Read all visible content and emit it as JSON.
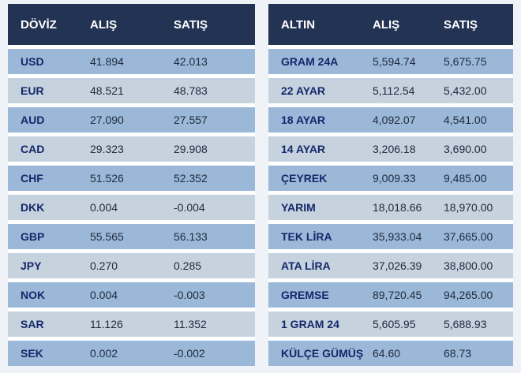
{
  "doviz": {
    "headers": {
      "name": "DÖVİZ",
      "buy": "ALIŞ",
      "sell": "SATIŞ"
    },
    "rows": [
      {
        "code": "USD",
        "buy": "41.894",
        "sell": "42.013"
      },
      {
        "code": "EUR",
        "buy": "48.521",
        "sell": "48.783"
      },
      {
        "code": "AUD",
        "buy": "27.090",
        "sell": "27.557"
      },
      {
        "code": "CAD",
        "buy": "29.323",
        "sell": "29.908"
      },
      {
        "code": "CHF",
        "buy": "51.526",
        "sell": "52.352"
      },
      {
        "code": "DKK",
        "buy": "0.004",
        "sell": "-0.004"
      },
      {
        "code": "GBP",
        "buy": "55.565",
        "sell": "56.133"
      },
      {
        "code": "JPY",
        "buy": "0.270",
        "sell": "0.285"
      },
      {
        "code": "NOK",
        "buy": "0.004",
        "sell": "-0.003"
      },
      {
        "code": "SAR",
        "buy": "11.126",
        "sell": "11.352"
      },
      {
        "code": "SEK",
        "buy": "0.002",
        "sell": "-0.002"
      }
    ]
  },
  "altin": {
    "headers": {
      "name": "ALTIN",
      "buy": "ALIŞ",
      "sell": "SATIŞ"
    },
    "rows": [
      {
        "code": "GRAM 24A",
        "buy": "5,594.74",
        "sell": "5,675.75"
      },
      {
        "code": "22 AYAR",
        "buy": "5,112.54",
        "sell": "5,432.00"
      },
      {
        "code": "18 AYAR",
        "buy": "4,092.07",
        "sell": "4,541.00"
      },
      {
        "code": "14 AYAR",
        "buy": "3,206.18",
        "sell": "3,690.00"
      },
      {
        "code": "ÇEYREK",
        "buy": "9,009.33",
        "sell": "9,485.00"
      },
      {
        "code": "YARIM",
        "buy": "18,018.66",
        "sell": "18,970.00"
      },
      {
        "code": "TEK LİRA",
        "buy": "35,933.04",
        "sell": "37,665.00"
      },
      {
        "code": "ATA LİRA",
        "buy": "37,026.39",
        "sell": "38,800.00"
      },
      {
        "code": "GREMSE",
        "buy": "89,720.45",
        "sell": "94,265.00"
      },
      {
        "code": "1 GRAM 24",
        "buy": "5,605.95",
        "sell": "5,688.93"
      },
      {
        "code": "KÜLÇE GÜMÜŞ",
        "buy": "64.60",
        "sell": "68.73"
      }
    ]
  },
  "colors": {
    "header_bg": "#233353",
    "row_odd": "#9bb8d8",
    "row_even": "#c6d2dd",
    "code_text": "#14286a"
  }
}
